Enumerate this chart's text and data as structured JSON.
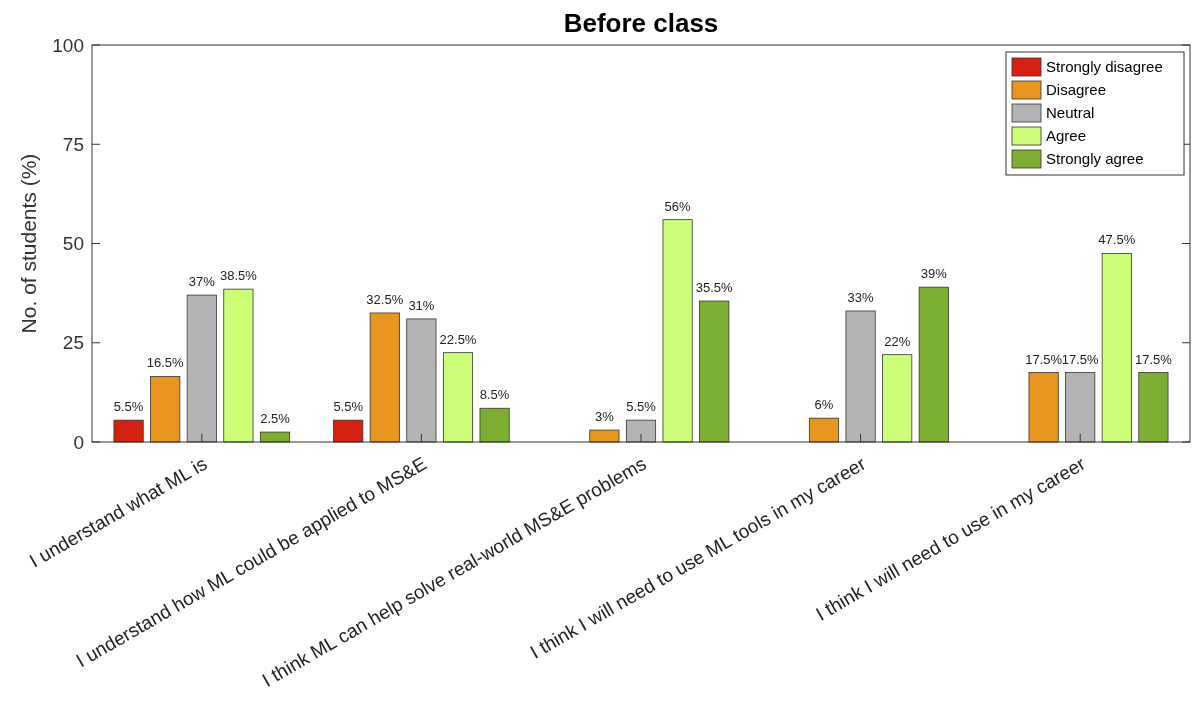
{
  "chart_data": {
    "type": "bar",
    "title": "Before class",
    "ylabel": "No. of students (%)",
    "categories": [
      "I understand what ML is",
      "I understand how ML could be applied to MS&E",
      "I think ML can help solve real-world MS&E problems",
      "I think I will need to use ML tools in my career",
      "I think I will need to use in my career"
    ],
    "series": [
      {
        "name": "Strongly disagree",
        "color": "#d62010",
        "values": [
          5.5,
          5.5,
          null,
          null,
          null
        ],
        "value_labels": [
          "5.5%",
          "5.5%",
          null,
          null,
          null
        ]
      },
      {
        "name": "Disagree",
        "color": "#e8961e",
        "values": [
          16.5,
          32.5,
          3,
          6,
          17.5
        ],
        "value_labels": [
          "16.5%",
          "32.5%",
          "3%",
          "6%",
          "17.5%"
        ]
      },
      {
        "name": "Neutral",
        "color": "#b4b4b4",
        "values": [
          37,
          31,
          5.5,
          33,
          17.5
        ],
        "value_labels": [
          "37%",
          "31%",
          "5.5%",
          "33%",
          "17.5%"
        ]
      },
      {
        "name": "Agree",
        "color": "#ccff77",
        "values": [
          38.5,
          22.5,
          56,
          22,
          47.5
        ],
        "value_labels": [
          "38.5%",
          "22.5%",
          "56%",
          "22%",
          "47.5%"
        ]
      },
      {
        "name": "Strongly agree",
        "color": "#7db032",
        "values": [
          2.5,
          8.5,
          35.5,
          39,
          17.5
        ],
        "value_labels": [
          "2.5%",
          "8.5%",
          "35.5%",
          "39%",
          "17.5%"
        ]
      }
    ],
    "ylim": [
      0,
      100
    ],
    "yticks": [
      0,
      25,
      50,
      75,
      100
    ],
    "grid": false,
    "legend": "top right"
  }
}
